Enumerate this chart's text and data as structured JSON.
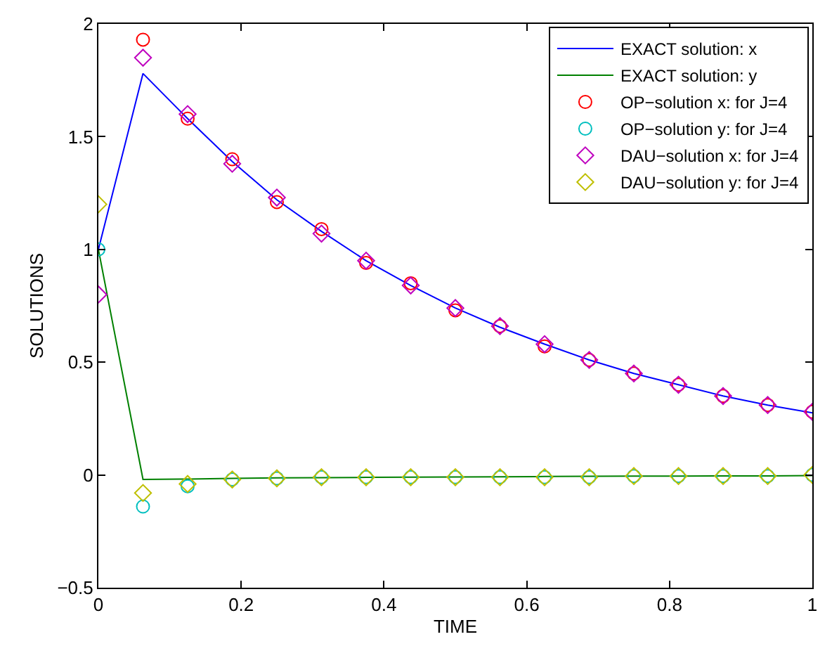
{
  "chart_data": {
    "type": "line",
    "xlabel": "TIME",
    "ylabel": "SOLUTIONS",
    "x": [
      0,
      0.0625,
      0.125,
      0.1875,
      0.25,
      0.3125,
      0.375,
      0.4375,
      0.5,
      0.5625,
      0.625,
      0.6875,
      0.75,
      0.8125,
      0.875,
      0.9375,
      1
    ],
    "series": [
      {
        "name": "EXACT solution: x",
        "marker": "none",
        "color": "#0000ff",
        "values": [
          1,
          1.78,
          1.58,
          1.39,
          1.22,
          1.08,
          0.95,
          0.84,
          0.74,
          0.655,
          0.58,
          0.51,
          0.45,
          0.4,
          0.35,
          0.31,
          0.275
        ]
      },
      {
        "name": "EXACT solution: y",
        "marker": "none",
        "color": "#008000",
        "values": [
          1,
          -0.02,
          -0.018,
          -0.015,
          -0.013,
          -0.012,
          -0.011,
          -0.01,
          -0.009,
          -0.008,
          -0.007,
          -0.006,
          -0.005,
          -0.005,
          -0.004,
          -0.004,
          -0.003
        ]
      },
      {
        "name": "OP−solution x: for J=4",
        "type": "scatter",
        "marker": "circle",
        "color": "#ff0000",
        "values": [
          null,
          1.93,
          1.58,
          1.4,
          1.21,
          1.09,
          0.94,
          0.85,
          0.73,
          0.66,
          0.57,
          0.51,
          0.45,
          0.4,
          0.35,
          0.31,
          0.28
        ]
      },
      {
        "name": "OP−solution y: for J=4",
        "type": "scatter",
        "marker": "circle",
        "color": "#00bfbf",
        "values": [
          1,
          -0.14,
          -0.05,
          -0.02,
          -0.015,
          -0.01,
          -0.01,
          -0.01,
          -0.01,
          -0.01,
          -0.01,
          -0.01,
          -0.005,
          -0.005,
          -0.005,
          -0.005,
          0
        ]
      },
      {
        "name": "DAU−solution x: for J=4",
        "type": "scatter",
        "marker": "diamond",
        "color": "#bf00bf",
        "values": [
          0.8,
          1.85,
          1.6,
          1.38,
          1.23,
          1.07,
          0.95,
          0.84,
          0.74,
          0.66,
          0.58,
          0.51,
          0.45,
          0.4,
          0.35,
          0.31,
          0.28
        ]
      },
      {
        "name": "DAU−solution y: for J=4",
        "type": "scatter",
        "marker": "diamond",
        "color": "#bfbf00",
        "values": [
          1.2,
          -0.08,
          -0.04,
          -0.02,
          -0.015,
          -0.01,
          -0.01,
          -0.01,
          -0.01,
          -0.01,
          -0.01,
          -0.01,
          -0.005,
          -0.005,
          -0.005,
          -0.005,
          0
        ]
      }
    ],
    "xlim": [
      0,
      1
    ],
    "xticks": [
      0,
      0.2,
      0.4,
      0.6,
      0.8,
      1
    ],
    "ylim": [
      -0.5,
      2
    ],
    "yticks": [
      -0.5,
      0,
      0.5,
      1,
      1.5,
      2
    ],
    "grid": false,
    "legend": "top right"
  }
}
